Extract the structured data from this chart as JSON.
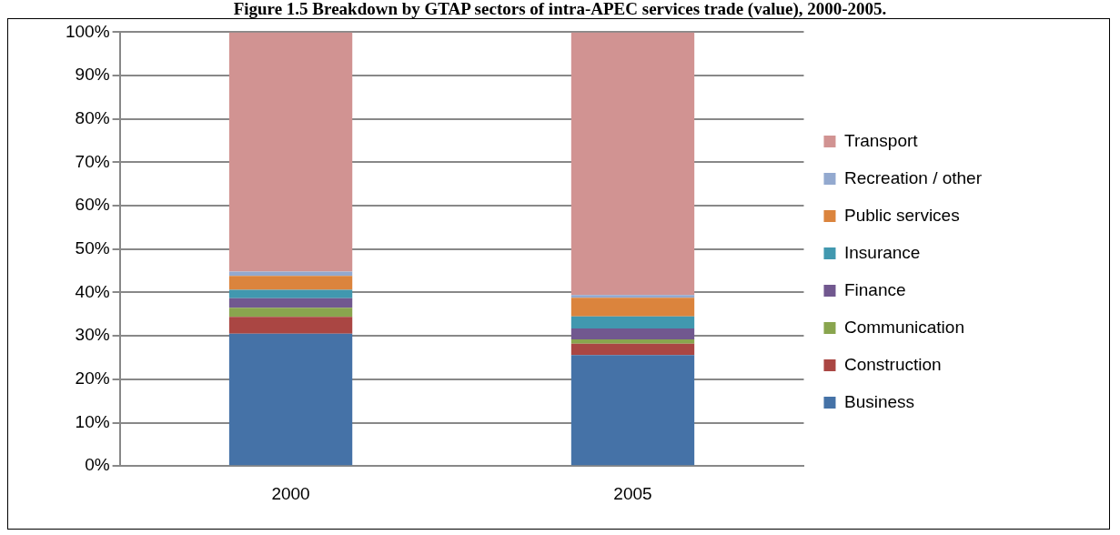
{
  "chart_data": {
    "type": "bar",
    "title": "Figure 1.5 Breakdown by GTAP sectors of intra-APEC services trade (value), 2000-2005.",
    "categories": [
      "2000",
      "2005"
    ],
    "stacked": true,
    "series": [
      {
        "name": "Business",
        "color": "#4572a7",
        "values": [
          30.5,
          25.6
        ]
      },
      {
        "name": "Construction",
        "color": "#aa4643",
        "values": [
          3.9,
          2.6
        ]
      },
      {
        "name": "Communication",
        "color": "#89a54e",
        "values": [
          2.1,
          1.0
        ]
      },
      {
        "name": "Finance",
        "color": "#71588f",
        "values": [
          2.2,
          2.5
        ]
      },
      {
        "name": "Insurance",
        "color": "#4198af",
        "values": [
          1.9,
          2.8
        ]
      },
      {
        "name": "Public services",
        "color": "#db843d",
        "values": [
          3.2,
          4.3
        ]
      },
      {
        "name": "Recreation / other",
        "color": "#93a9cf",
        "values": [
          1.0,
          0.6
        ]
      },
      {
        "name": "Transport",
        "color": "#d19392",
        "values": [
          55.2,
          60.6
        ]
      }
    ],
    "ylim": [
      0,
      100
    ],
    "yticks": [
      {
        "value": 0,
        "label": "0%"
      },
      {
        "value": 10,
        "label": "10%"
      },
      {
        "value": 20,
        "label": "20%"
      },
      {
        "value": 30,
        "label": "30%"
      },
      {
        "value": 40,
        "label": "40%"
      },
      {
        "value": 50,
        "label": "50%"
      },
      {
        "value": 60,
        "label": "60%"
      },
      {
        "value": 70,
        "label": "70%"
      },
      {
        "value": 80,
        "label": "80%"
      },
      {
        "value": 90,
        "label": "90%"
      },
      {
        "value": 100,
        "label": "100%"
      }
    ],
    "grid": "y",
    "legend": "right"
  }
}
